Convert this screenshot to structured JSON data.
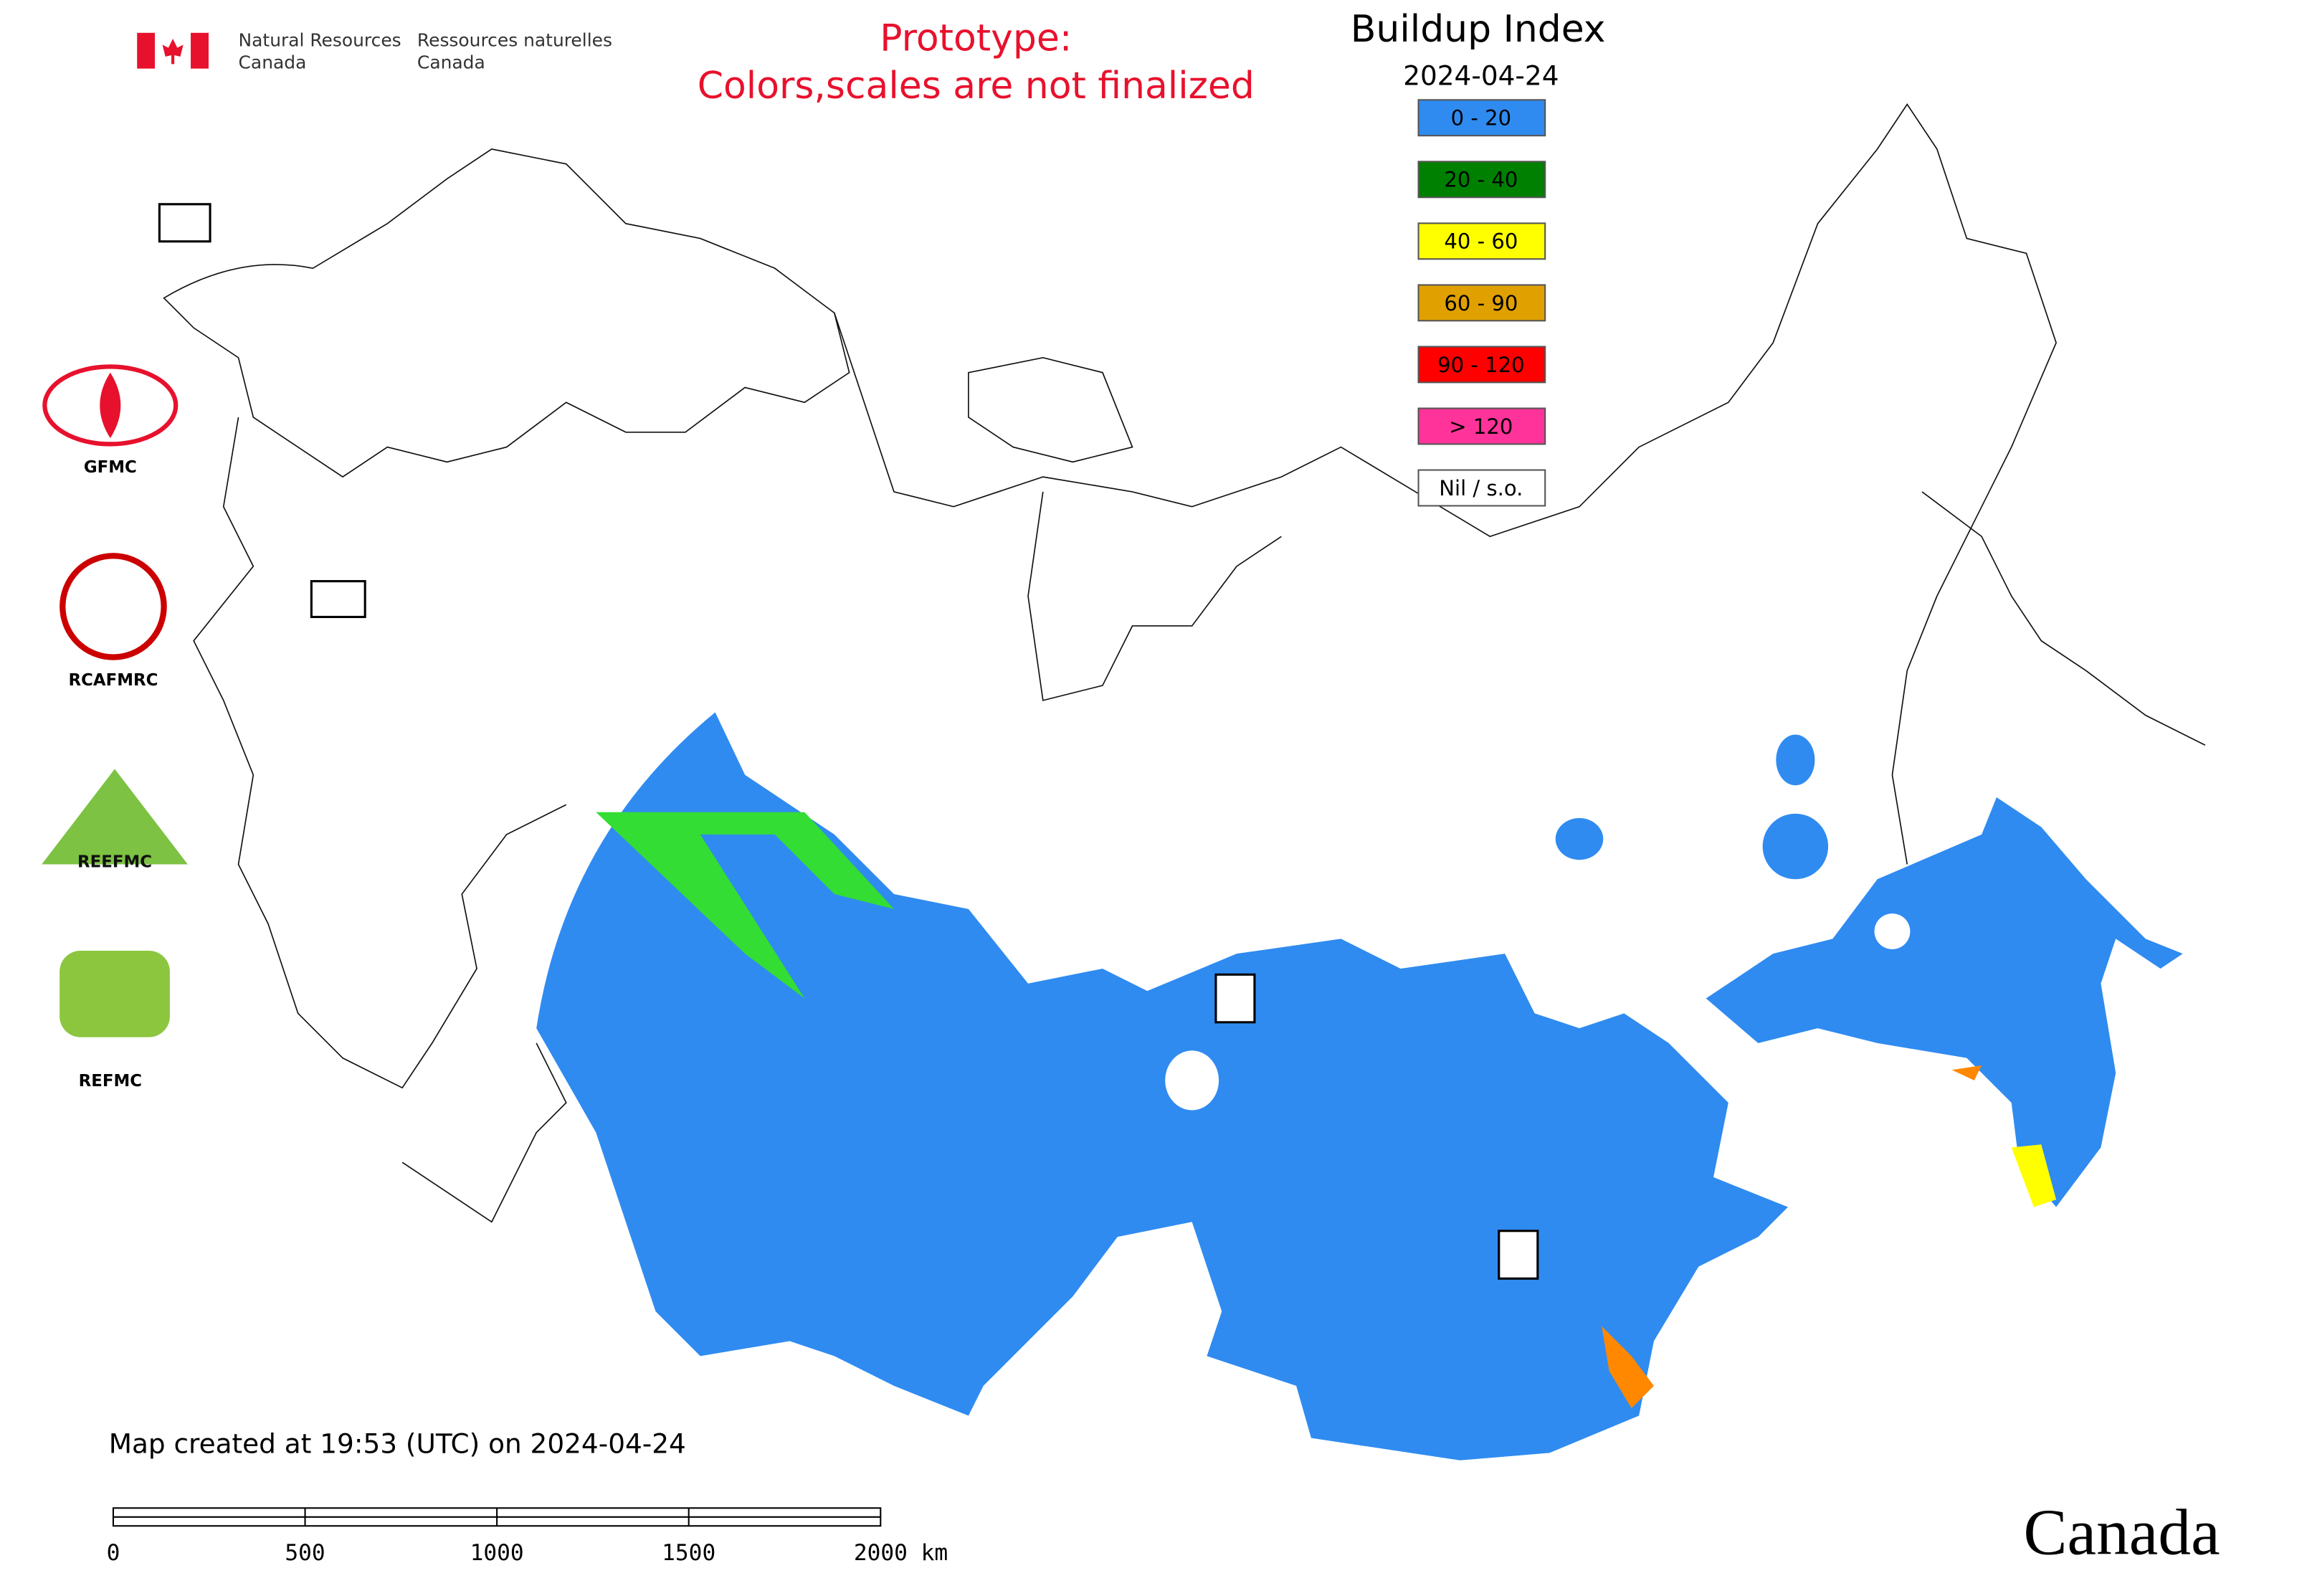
{
  "header": {
    "department_en": [
      "Natural Resources",
      "Canada"
    ],
    "department_fr": [
      "Ressources naturelles",
      "Canada"
    ],
    "notice": [
      "Prototype:",
      "Colors,scales are not finalized"
    ],
    "title": "Buildup Index",
    "date": "2024-04-24"
  },
  "legend": [
    {
      "label": "0 - 20",
      "color": "#2f8bf0"
    },
    {
      "label": "20 - 40",
      "color": "#008000"
    },
    {
      "label": "40 - 60",
      "color": "#ffff00"
    },
    {
      "label": "60 - 90",
      "color": "#e0a000"
    },
    {
      "label": "90 - 120",
      "color": "#ff0000"
    },
    {
      "label": "> 120",
      "color": "#ff3399"
    },
    {
      "label": "Nil / s.o.",
      "color": "#ffffff"
    }
  ],
  "logos": [
    "GFMC",
    "RCAFMRC",
    "REEFMC",
    "REFMC"
  ],
  "footer": {
    "created": "Map created at 19:53 (UTC) on 2024-04-24",
    "scale": [
      "0",
      "500",
      "1000",
      "1500",
      "2000 km"
    ],
    "wordmark": "Canada"
  }
}
